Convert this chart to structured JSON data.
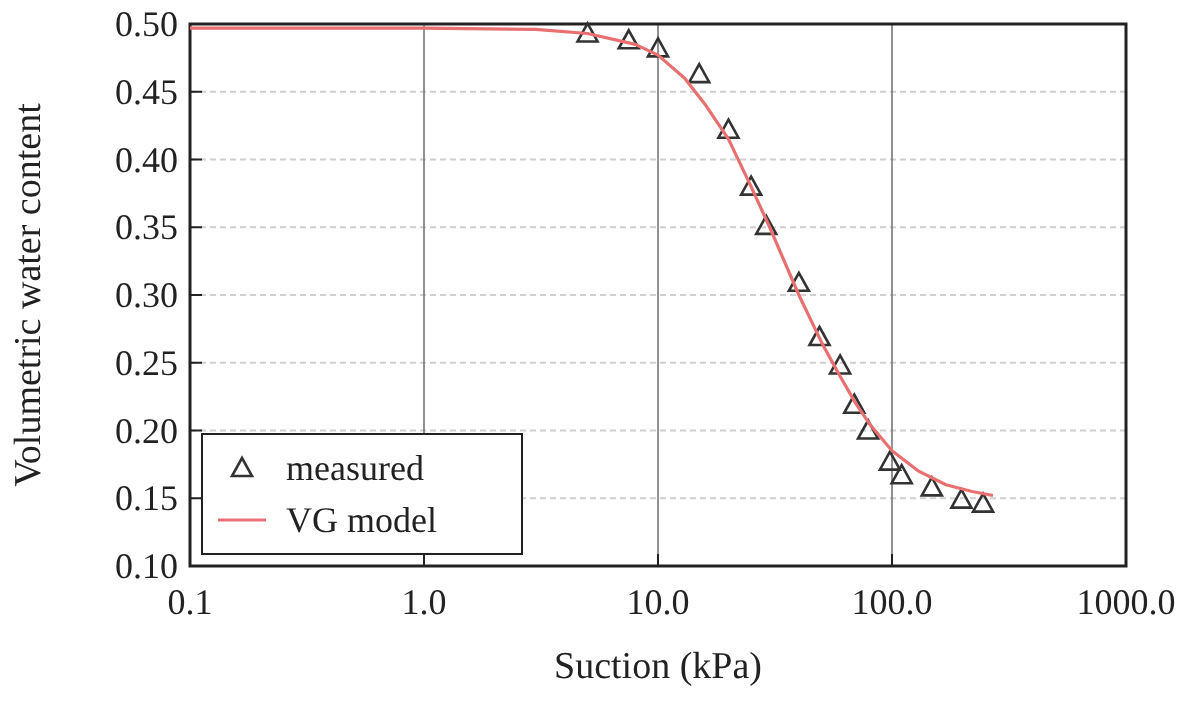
{
  "chart_data": {
    "type": "scatter",
    "xlabel": "Suction (kPa)",
    "ylabel": "Volumetric water content",
    "log": "x",
    "xlim": [
      0.1,
      1000
    ],
    "xticks": [
      0.1,
      {
        "value": 1,
        "label": "1.0"
      },
      {
        "value": 10,
        "label": "10.0"
      },
      {
        "value": 100,
        "label": "100.0"
      },
      {
        "value": 1000,
        "label": "1000.0"
      }
    ],
    "ylim": [
      0.1,
      0.5
    ],
    "yticks": [
      {
        "value": 0.1,
        "label": "0.10"
      },
      0.15,
      {
        "value": 0.2,
        "label": "0.20"
      },
      0.25,
      {
        "value": 0.3,
        "label": "0.30"
      },
      0.35,
      {
        "value": 0.4,
        "label": "0.40"
      },
      0.45,
      {
        "value": 0.5,
        "label": "0.50"
      }
    ],
    "grid": true,
    "legend": "bottom left",
    "marker": "triangle",
    "series": [
      {
        "name": "measured",
        "color": "#333333",
        "x": [
          5,
          7.5,
          10,
          15,
          20,
          25,
          29,
          40,
          49,
          60,
          69,
          79,
          98,
          110,
          148,
          198,
          245
        ],
        "values": [
          0.493,
          0.488,
          0.482,
          0.463,
          0.422,
          0.38,
          0.351,
          0.309,
          0.269,
          0.248,
          0.219,
          0.2,
          0.177,
          0.167,
          0.158,
          0.149,
          0.146
        ]
      },
      {
        "name": "VG model",
        "type": "line",
        "color": "#e87070",
        "line_style": "solid",
        "marker": "none",
        "x": [
          0.1,
          1,
          3,
          5,
          8,
          10,
          13,
          16,
          20,
          25,
          30,
          40,
          50,
          60,
          70,
          80,
          100,
          130,
          170,
          220,
          270
        ],
        "values": [
          0.497,
          0.497,
          0.496,
          0.493,
          0.485,
          0.477,
          0.46,
          0.44,
          0.415,
          0.38,
          0.35,
          0.3,
          0.265,
          0.24,
          0.22,
          0.205,
          0.185,
          0.17,
          0.16,
          0.155,
          0.152
        ]
      }
    ]
  }
}
